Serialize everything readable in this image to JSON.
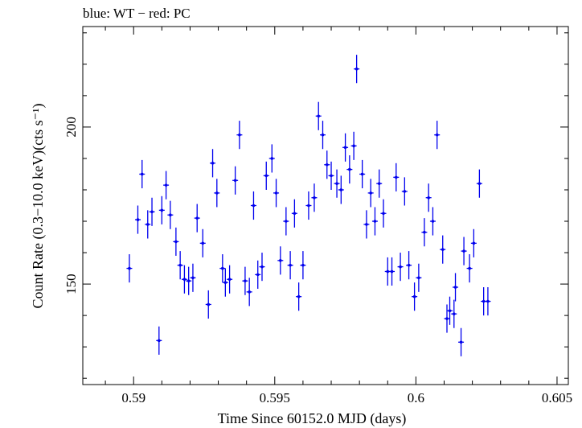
{
  "chart_data": {
    "type": "scatter",
    "title": "blue: WT − red: PC",
    "xlabel": "Time Since 60152.0 MJD (days)",
    "ylabel": "Count Rate (0.3−10.0 keV)(cts s⁻¹)",
    "xlim": [
      0.5882,
      0.6054
    ],
    "ylim": [
      118.0,
      232.0
    ],
    "x_ticks": [
      {
        "value": 0.59,
        "label": "0.59"
      },
      {
        "value": 0.595,
        "label": "0.595"
      },
      {
        "value": 0.6,
        "label": "0.6"
      },
      {
        "value": 0.605,
        "label": "0.605"
      }
    ],
    "y_ticks": [
      {
        "value": 150,
        "label": "150"
      },
      {
        "value": 200,
        "label": "200"
      }
    ],
    "series": [
      {
        "name": "WT",
        "color": "#0000ee",
        "x_halfwidth": 0.0001,
        "points": [
          [
            0.58985,
            155.0,
            4.5
          ],
          [
            0.59015,
            170.5,
            4.5
          ],
          [
            0.5903,
            185.0,
            4.5
          ],
          [
            0.5905,
            169.0,
            4.5
          ],
          [
            0.59065,
            173.0,
            4.5
          ],
          [
            0.5909,
            132.0,
            4.5
          ],
          [
            0.591,
            173.5,
            4.5
          ],
          [
            0.59115,
            181.5,
            4.5
          ],
          [
            0.5913,
            172.0,
            4.5
          ],
          [
            0.5915,
            163.5,
            4.5
          ],
          [
            0.59165,
            156.0,
            4.5
          ],
          [
            0.5918,
            151.5,
            4.5
          ],
          [
            0.59195,
            151.0,
            4.5
          ],
          [
            0.5921,
            152.0,
            4.5
          ],
          [
            0.59225,
            171.0,
            4.5
          ],
          [
            0.59245,
            163.0,
            4.5
          ],
          [
            0.59265,
            143.5,
            4.5
          ],
          [
            0.5928,
            188.5,
            4.5
          ],
          [
            0.59295,
            179.0,
            4.5
          ],
          [
            0.59315,
            155.0,
            4.5
          ],
          [
            0.59325,
            150.5,
            4.5
          ],
          [
            0.5934,
            151.5,
            4.5
          ],
          [
            0.5936,
            183.0,
            4.5
          ],
          [
            0.59375,
            197.5,
            4.5
          ],
          [
            0.59395,
            151.0,
            4.5
          ],
          [
            0.5941,
            147.5,
            4.5
          ],
          [
            0.59425,
            175.0,
            4.5
          ],
          [
            0.5944,
            153.0,
            4.5
          ],
          [
            0.59455,
            155.5,
            4.5
          ],
          [
            0.5947,
            184.5,
            4.5
          ],
          [
            0.5949,
            190.0,
            4.5
          ],
          [
            0.59505,
            179.0,
            4.5
          ],
          [
            0.5952,
            157.5,
            4.5
          ],
          [
            0.5954,
            170.0,
            4.5
          ],
          [
            0.59555,
            156.0,
            4.5
          ],
          [
            0.5957,
            172.5,
            4.5
          ],
          [
            0.59585,
            146.0,
            4.5
          ],
          [
            0.596,
            156.0,
            4.5
          ],
          [
            0.5962,
            175.0,
            4.5
          ],
          [
            0.5964,
            177.5,
            4.5
          ],
          [
            0.59655,
            203.5,
            4.5
          ],
          [
            0.5967,
            197.5,
            4.5
          ],
          [
            0.59685,
            188.0,
            4.5
          ],
          [
            0.597,
            184.5,
            4.5
          ],
          [
            0.5972,
            182.0,
            4.5
          ],
          [
            0.59735,
            180.0,
            4.5
          ],
          [
            0.5975,
            193.5,
            4.5
          ],
          [
            0.59765,
            186.5,
            4.5
          ],
          [
            0.5978,
            194.0,
            4.5
          ],
          [
            0.5979,
            218.5,
            4.5
          ],
          [
            0.5981,
            185.0,
            4.5
          ],
          [
            0.59825,
            169.0,
            4.5
          ],
          [
            0.5984,
            179.0,
            4.5
          ],
          [
            0.59855,
            170.0,
            4.5
          ],
          [
            0.5987,
            182.0,
            4.5
          ],
          [
            0.59885,
            172.5,
            4.5
          ],
          [
            0.599,
            154.0,
            4.5
          ],
          [
            0.59915,
            154.0,
            4.5
          ],
          [
            0.5993,
            184.0,
            4.5
          ],
          [
            0.59945,
            155.5,
            4.5
          ],
          [
            0.5996,
            179.5,
            4.5
          ],
          [
            0.59975,
            156.0,
            4.5
          ],
          [
            0.59995,
            146.0,
            4.5
          ],
          [
            0.6001,
            152.0,
            4.5
          ],
          [
            0.6003,
            166.5,
            4.5
          ],
          [
            0.60045,
            177.5,
            4.5
          ],
          [
            0.6006,
            170.0,
            4.5
          ],
          [
            0.60075,
            197.5,
            4.5
          ],
          [
            0.60095,
            161.0,
            4.5
          ],
          [
            0.6011,
            139.0,
            4.5
          ],
          [
            0.6012,
            141.5,
            4.5
          ],
          [
            0.60135,
            140.5,
            4.5
          ],
          [
            0.6014,
            149.0,
            4.5
          ],
          [
            0.6016,
            131.5,
            4.5
          ],
          [
            0.6017,
            160.5,
            4.5
          ],
          [
            0.6019,
            155.0,
            4.5
          ],
          [
            0.60205,
            163.0,
            4.5
          ],
          [
            0.60225,
            182.0,
            4.5
          ],
          [
            0.6024,
            144.5,
            4.5
          ],
          [
            0.60255,
            144.5,
            4.5
          ]
        ]
      }
    ]
  }
}
